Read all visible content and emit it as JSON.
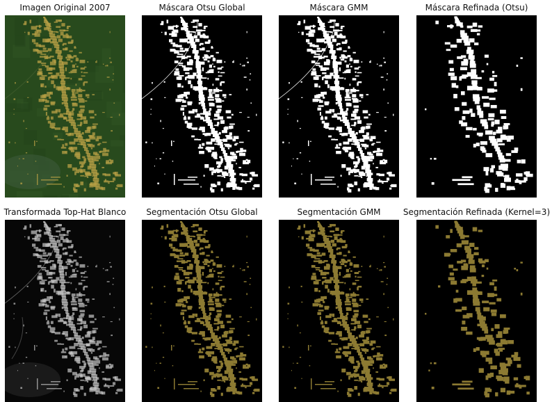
{
  "figure": {
    "panels": [
      {
        "id": "original",
        "title": "Imagen Original 2007",
        "background": "#284a1d",
        "render": "original"
      },
      {
        "id": "otsu-mask",
        "title": "Máscara Otsu Global",
        "background": "#000000",
        "render": "mask",
        "density": 1.0
      },
      {
        "id": "gmm-mask",
        "title": "Máscara GMM",
        "background": "#000000",
        "render": "mask",
        "density": 0.95
      },
      {
        "id": "refined-mask",
        "title": "Máscara Refinada (Otsu)",
        "background": "#000000",
        "render": "mask-refined",
        "density": 0.7
      },
      {
        "id": "tophat",
        "title": "Transformada Top-Hat Blanco",
        "background": "#070707",
        "render": "tophat"
      },
      {
        "id": "otsu-seg",
        "title": "Segmentación Otsu Global",
        "background": "#000000",
        "render": "seg",
        "density": 1.0
      },
      {
        "id": "gmm-seg",
        "title": "Segmentación GMM",
        "background": "#000000",
        "render": "seg",
        "density": 0.95
      },
      {
        "id": "refined-seg",
        "title": "Segmentación Refinada (Kernel=3)",
        "background": "#000000",
        "render": "seg-refined",
        "density": 0.7
      }
    ],
    "colors": {
      "vegetation": "#284a1d",
      "deforestation": "#b8a046",
      "mask_white": "#ffffff",
      "segmentation_olive": "#8c7a32",
      "tophat_gray": "#c8c8c8"
    }
  }
}
